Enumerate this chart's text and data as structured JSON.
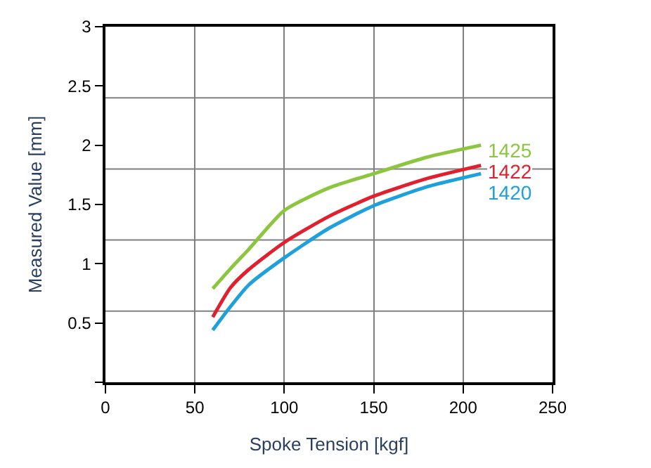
{
  "chart_data": {
    "type": "line",
    "xlabel": "Spoke Tension [kgf]",
    "ylabel": "Measured Value [mm]",
    "xlim": [
      0,
      250
    ],
    "xticks": [
      0,
      50,
      100,
      150,
      200,
      250
    ],
    "ylim": [
      0,
      3
    ],
    "yticks": [
      {
        "value": 0,
        "label": null
      },
      0.5,
      1,
      1.5,
      2,
      2.5,
      3
    ],
    "grid": "x",
    "legend": false,
    "marker": "none",
    "line_style": "solid",
    "ref_lines": [
      {
        "axis": "y",
        "value": 0.6,
        "color": "#808080"
      },
      {
        "axis": "y",
        "value": 1.2,
        "color": "#808080"
      },
      {
        "axis": "y",
        "value": 1.8,
        "color": "#808080"
      },
      {
        "axis": "y",
        "value": 2.4,
        "color": "#808080"
      }
    ],
    "x": [
      60,
      70,
      80,
      100,
      125,
      150,
      180,
      210
    ],
    "series": [
      {
        "name": "1425",
        "color": "#8cc63f",
        "values": [
          0.79,
          0.96,
          1.12,
          1.45,
          1.64,
          1.76,
          1.9,
          2.0
        ]
      },
      {
        "name": "1422",
        "color": "#e0202e",
        "values": [
          0.55,
          0.8,
          0.95,
          1.18,
          1.4,
          1.57,
          1.72,
          1.83
        ]
      },
      {
        "name": "1420",
        "color": "#1ea0dc",
        "values": [
          0.44,
          0.64,
          0.82,
          1.05,
          1.3,
          1.49,
          1.65,
          1.76
        ]
      }
    ]
  }
}
